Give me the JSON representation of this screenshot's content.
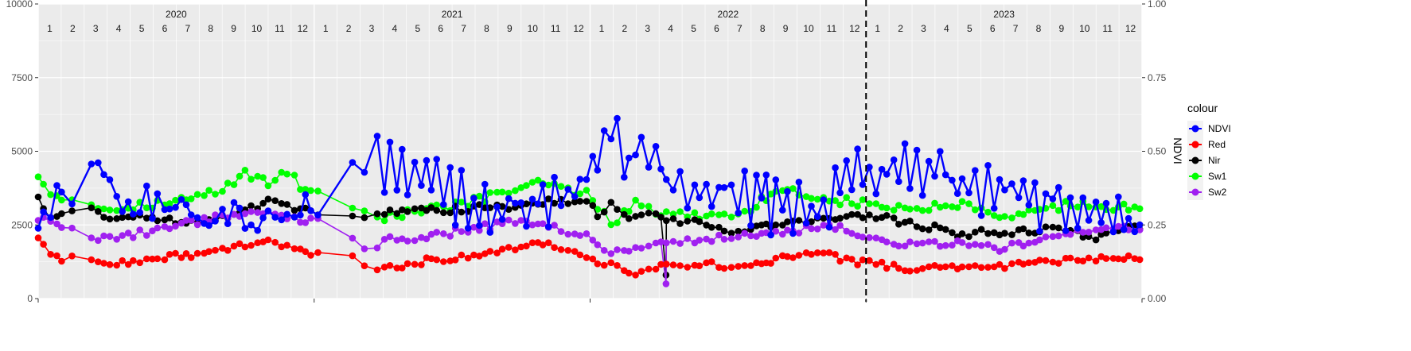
{
  "chart_data": {
    "type": "line",
    "y_left": {
      "min": 0,
      "max": 10000,
      "ticks": [
        "0",
        "2500",
        "5000",
        "7500",
        "10000"
      ]
    },
    "y_right": {
      "label": "NDVI",
      "min": 0,
      "max": 1,
      "ticks": [
        "0.00",
        "0.25",
        "0.50",
        "0.75",
        "1.00"
      ]
    },
    "years": [
      "2020",
      "2021",
      "2022",
      "2023"
    ],
    "months": [
      "1",
      "2",
      "3",
      "4",
      "5",
      "6",
      "7",
      "8",
      "9",
      "10",
      "11",
      "12"
    ],
    "vline_at_month_index": 36,
    "legend": {
      "title": "colour",
      "items": [
        {
          "name": "NDVI",
          "color": "#0000ff"
        },
        {
          "name": "Red",
          "color": "#ff0000"
        },
        {
          "name": "Nir",
          "color": "#000000"
        },
        {
          "name": "Sw1",
          "color": "#00ff00"
        },
        {
          "name": "Sw2",
          "color": "#a020f0"
        }
      ]
    },
    "series": [
      {
        "name": "Sw1",
        "color": "#00ff00",
        "axis": "left",
        "keyframes": [
          [
            0,
            4200
          ],
          [
            0.5,
            3600
          ],
          [
            3,
            3050
          ],
          [
            6,
            3300
          ],
          [
            8,
            3650
          ],
          [
            9,
            4300
          ],
          [
            10,
            3900
          ],
          [
            11,
            4400
          ],
          [
            11.5,
            3700
          ],
          [
            13,
            3600
          ],
          [
            14.5,
            2700
          ],
          [
            17,
            3000
          ],
          [
            19,
            3300
          ],
          [
            21,
            3800
          ],
          [
            22,
            3900
          ],
          [
            24,
            3500
          ],
          [
            25,
            2500
          ],
          [
            26,
            3300
          ],
          [
            27,
            2900
          ],
          [
            29,
            2800
          ],
          [
            31,
            3000
          ],
          [
            32,
            3700
          ],
          [
            33,
            3600
          ],
          [
            34,
            3400
          ],
          [
            35,
            3300
          ],
          [
            36,
            3200
          ],
          [
            38,
            3000
          ],
          [
            40,
            3200
          ],
          [
            42,
            2700
          ],
          [
            44,
            3000
          ],
          [
            45,
            3300
          ],
          [
            46,
            3000
          ],
          [
            47,
            3100
          ]
        ],
        "noise": 150
      },
      {
        "name": "Nir",
        "color": "#000000",
        "axis": "left",
        "keyframes": [
          [
            0,
            3500
          ],
          [
            0.5,
            2700
          ],
          [
            2,
            3100
          ],
          [
            3,
            2800
          ],
          [
            5,
            2700
          ],
          [
            7,
            2600
          ],
          [
            9,
            3000
          ],
          [
            10,
            3300
          ],
          [
            11,
            3100
          ],
          [
            12,
            2900
          ],
          [
            13,
            3000
          ],
          [
            14.5,
            2800
          ],
          [
            15,
            2900
          ],
          [
            17,
            3000
          ],
          [
            20,
            3100
          ],
          [
            22,
            3300
          ],
          [
            24,
            3200
          ],
          [
            24.5,
            2700
          ],
          [
            25,
            3300
          ],
          [
            25.5,
            2800
          ],
          [
            27,
            2800
          ],
          [
            29,
            2500
          ],
          [
            30,
            2300
          ],
          [
            32,
            2500
          ],
          [
            34,
            2700
          ],
          [
            36,
            2800
          ],
          [
            37,
            2700
          ],
          [
            39,
            2400
          ],
          [
            40,
            2100
          ],
          [
            41,
            2300
          ],
          [
            42,
            2200
          ],
          [
            44,
            2400
          ],
          [
            46,
            2100
          ],
          [
            47,
            2400
          ]
        ],
        "noise": 120
      },
      {
        "name": "Sw2",
        "color": "#a020f0",
        "axis": "left",
        "keyframes": [
          [
            0,
            2700
          ],
          [
            2,
            2200
          ],
          [
            3,
            2000
          ],
          [
            5,
            2300
          ],
          [
            8,
            2800
          ],
          [
            10,
            3000
          ],
          [
            11,
            2700
          ],
          [
            12,
            2600
          ],
          [
            13,
            2700
          ],
          [
            14,
            1900
          ],
          [
            14.5,
            1400
          ],
          [
            15,
            2000
          ],
          [
            17,
            2100
          ],
          [
            19,
            2400
          ],
          [
            20,
            2500
          ],
          [
            21,
            2700
          ],
          [
            23,
            2300
          ],
          [
            24,
            2100
          ],
          [
            25,
            1500
          ],
          [
            26,
            1800
          ],
          [
            27,
            1900
          ],
          [
            29,
            2000
          ],
          [
            31,
            2200
          ],
          [
            33,
            2300
          ],
          [
            34,
            2500
          ],
          [
            35,
            2400
          ],
          [
            36,
            2000
          ],
          [
            38,
            1800
          ],
          [
            40,
            1900
          ],
          [
            42,
            1700
          ],
          [
            44,
            2100
          ],
          [
            46,
            2400
          ],
          [
            47,
            2400
          ]
        ],
        "noise": 120
      },
      {
        "name": "Red",
        "color": "#ff0000",
        "axis": "left",
        "keyframes": [
          [
            0,
            2100
          ],
          [
            0.5,
            1400
          ],
          [
            2.5,
            1300
          ],
          [
            3,
            1100
          ],
          [
            5,
            1400
          ],
          [
            7,
            1500
          ],
          [
            9,
            1800
          ],
          [
            10,
            1900
          ],
          [
            11,
            1700
          ],
          [
            12,
            1500
          ],
          [
            13,
            1700
          ],
          [
            14.5,
            900
          ],
          [
            15,
            1000
          ],
          [
            17,
            1300
          ],
          [
            19,
            1500
          ],
          [
            21,
            1800
          ],
          [
            22,
            1900
          ],
          [
            24,
            1300
          ],
          [
            25,
            1100
          ],
          [
            26,
            900
          ],
          [
            27,
            1100
          ],
          [
            29,
            1200
          ],
          [
            30,
            1100
          ],
          [
            32,
            1300
          ],
          [
            34,
            1600
          ],
          [
            35,
            1300
          ],
          [
            36,
            1200
          ],
          [
            38,
            1000
          ],
          [
            40,
            1100
          ],
          [
            42,
            1100
          ],
          [
            44,
            1300
          ],
          [
            46,
            1300
          ],
          [
            47,
            1400
          ]
        ],
        "noise": 110
      },
      {
        "name": "NDVI",
        "color": "#0000ff",
        "axis": "right",
        "keyframes": [
          [
            0,
            0.26
          ],
          [
            0.5,
            0.31
          ],
          [
            2,
            0.4
          ],
          [
            3,
            0.43
          ],
          [
            3.5,
            0.34
          ],
          [
            5,
            0.33
          ],
          [
            6,
            0.33
          ],
          [
            8,
            0.26
          ],
          [
            10,
            0.3
          ],
          [
            12,
            0.3
          ],
          [
            13,
            0.3
          ],
          [
            14,
            0.46
          ],
          [
            14.5,
            0.53
          ],
          [
            15,
            0.46
          ],
          [
            16,
            0.43
          ],
          [
            17,
            0.4
          ],
          [
            18,
            0.34
          ],
          [
            19,
            0.33
          ],
          [
            20,
            0.31
          ],
          [
            22,
            0.32
          ],
          [
            23,
            0.34
          ],
          [
            24,
            0.45
          ],
          [
            25,
            0.59
          ],
          [
            25.5,
            0.5
          ],
          [
            26,
            0.49
          ],
          [
            27,
            0.43
          ],
          [
            28,
            0.38
          ],
          [
            29,
            0.33
          ],
          [
            30,
            0.37
          ],
          [
            32,
            0.31
          ],
          [
            34,
            0.29
          ],
          [
            35,
            0.41
          ],
          [
            36,
            0.46
          ],
          [
            36.5,
            0.44
          ],
          [
            38,
            0.43
          ],
          [
            40,
            0.41
          ],
          [
            41,
            0.37
          ],
          [
            42,
            0.36
          ],
          [
            43,
            0.33
          ],
          [
            44,
            0.32
          ],
          [
            45,
            0.31
          ],
          [
            46,
            0.28
          ],
          [
            47,
            0.26
          ]
        ],
        "noise": 0.06,
        "zigzag": true
      }
    ],
    "spikes": [
      {
        "series": "Sw2",
        "month_index": 27.3,
        "value": 500
      },
      {
        "series": "Nir",
        "month_index": 27.3,
        "value": 800
      }
    ]
  }
}
